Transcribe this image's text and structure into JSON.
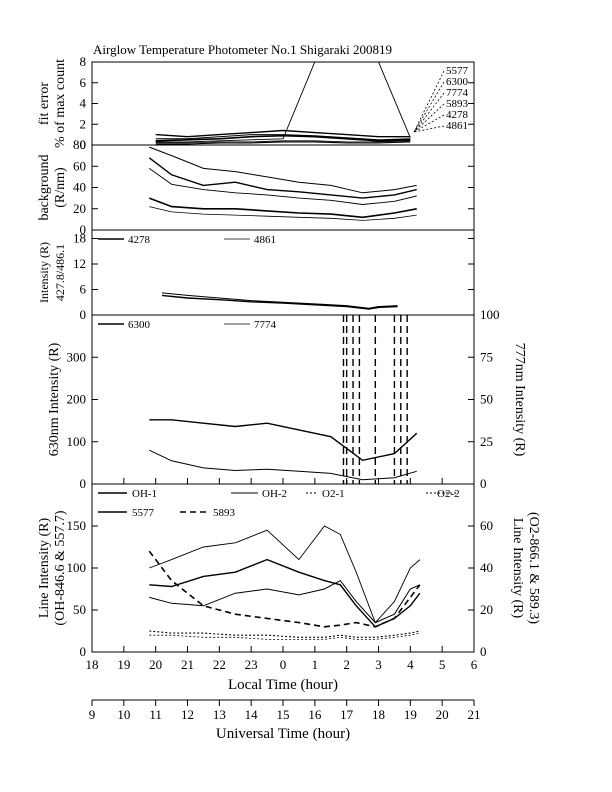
{
  "title": "Airglow Temperature Photometer No.1  Shigaraki  200819",
  "chart_data": [
    {
      "type": "line",
      "id": "fit-error",
      "ylabel_lines": [
        "fit error",
        "% of max count"
      ],
      "ylim": [
        0,
        8
      ],
      "yticks": [
        "0",
        "2",
        "4",
        "6",
        "8"
      ],
      "labels_right": [
        "5577",
        "6300",
        "7774",
        "5893",
        "4278",
        "4861"
      ],
      "x": [
        20,
        21,
        22,
        23,
        24,
        25,
        26,
        27,
        28
      ],
      "series": [
        {
          "label": "5577",
          "values": [
            0.6,
            0.6,
            0.8,
            1.0,
            1.0,
            0.9,
            0.7,
            0.5,
            0.6
          ]
        },
        {
          "label": "6300",
          "values": [
            1.0,
            0.8,
            1.0,
            1.2,
            1.4,
            1.2,
            1.0,
            0.8,
            0.8
          ]
        },
        {
          "label": "7774",
          "values": [
            0.3,
            0.3,
            0.4,
            0.5,
            0.6,
            8.0,
            8.0,
            8.0,
            0.7
          ]
        },
        {
          "label": "5893",
          "values": [
            0.4,
            0.5,
            0.6,
            0.8,
            0.9,
            0.8,
            0.6,
            0.4,
            0.5
          ]
        },
        {
          "label": "4278",
          "values": [
            0.2,
            0.2,
            0.3,
            0.3,
            0.4,
            0.4,
            0.3,
            0.3,
            0.4
          ]
        },
        {
          "label": "4861",
          "values": [
            0.1,
            0.1,
            0.2,
            0.2,
            0.3,
            0.3,
            0.2,
            0.2,
            0.3
          ]
        }
      ]
    },
    {
      "type": "line",
      "id": "background",
      "ylabel_lines": [
        "background",
        "(R/nm)"
      ],
      "ylim": [
        0,
        80
      ],
      "yticks": [
        "0",
        "20",
        "40",
        "60",
        "80"
      ],
      "x": [
        19.8,
        20.5,
        21.5,
        22.5,
        23.5,
        24.5,
        25.5,
        26.5,
        27.5,
        28.2
      ],
      "series": [
        {
          "values": [
            78,
            70,
            58,
            55,
            50,
            45,
            42,
            35,
            38,
            42
          ]
        },
        {
          "values": [
            68,
            52,
            42,
            45,
            38,
            36,
            33,
            30,
            33,
            38
          ]
        },
        {
          "values": [
            58,
            43,
            38,
            35,
            33,
            30,
            28,
            24,
            27,
            32
          ]
        },
        {
          "values": [
            30,
            22,
            20,
            20,
            18,
            16,
            15,
            12,
            16,
            20
          ]
        },
        {
          "values": [
            22,
            17,
            15,
            14,
            13,
            12,
            11,
            9,
            11,
            14
          ]
        }
      ]
    },
    {
      "type": "line",
      "id": "intensity-4278-4861",
      "ylabel_lines": [
        "Intensity (R)",
        "427.8/486.1"
      ],
      "ylim": [
        0,
        20
      ],
      "yticks": [
        "0",
        "6",
        "12",
        "18"
      ],
      "legend": [
        "4278",
        "4861"
      ],
      "x": [
        20.2,
        21,
        22,
        23,
        24,
        25,
        26,
        26.7,
        27,
        27.6
      ],
      "series": [
        {
          "name": "4278",
          "values": [
            5.2,
            4.6,
            4.0,
            3.4,
            3.0,
            2.6,
            2.2,
            1.6,
            2.0,
            2.2
          ]
        },
        {
          "name": "4861",
          "values": [
            4.6,
            4.0,
            3.6,
            3.1,
            2.8,
            2.4,
            2.0,
            1.4,
            1.8,
            2.0
          ]
        }
      ]
    },
    {
      "type": "line",
      "id": "intensity-6300-7774",
      "ylabel": "630nm Intensity (R)",
      "ylabel_right": "777nm Intensity (R)",
      "ylim": [
        0,
        400
      ],
      "yticks": [
        "0",
        "100",
        "200",
        "300"
      ],
      "ylim_right": [
        0,
        100
      ],
      "yticks_right": [
        "0",
        "25",
        "50",
        "75",
        "100"
      ],
      "legend": [
        "6300",
        "7774"
      ],
      "x": [
        19.8,
        20.5,
        21.5,
        22.5,
        23.5,
        24.5,
        25.5,
        26.5,
        27.5,
        28.2
      ],
      "series": [
        {
          "name": "6300",
          "values": [
            80,
            55,
            38,
            32,
            35,
            30,
            25,
            10,
            15,
            30
          ]
        },
        {
          "name": "7774",
          "values": [
            38,
            38,
            36,
            34,
            36,
            32,
            28,
            14,
            18,
            30
          ]
        }
      ],
      "dashed_spikes_x": [
        25.9,
        26.0,
        26.2,
        26.4,
        26.9,
        27.5,
        27.7,
        27.9
      ]
    },
    {
      "type": "line",
      "id": "line-intensity",
      "ylabel_lines": [
        "Line Intensity (R)",
        "(OH-846.6 & 557.7)"
      ],
      "ylabel_right_lines": [
        "Line Intensity (R)",
        "(O2-866.1 & 589.3)"
      ],
      "ylim": [
        0,
        200
      ],
      "yticks": [
        "0",
        "50",
        "100",
        "150"
      ],
      "ylim_right": [
        0,
        80
      ],
      "yticks_right": [
        "0",
        "20",
        "40",
        "60"
      ],
      "legend": [
        "OH-1",
        "OH-2",
        "O2-1",
        "O2-2",
        "5577",
        "5893"
      ],
      "x": [
        19.8,
        20.5,
        21.5,
        22.5,
        23.5,
        24.5,
        25.3,
        25.8,
        26.3,
        26.9,
        27.5,
        28.0,
        28.3
      ],
      "series": [
        {
          "name": "OH-1",
          "values": [
            65,
            58,
            55,
            70,
            75,
            68,
            75,
            85,
            60,
            35,
            45,
            75,
            80
          ]
        },
        {
          "name": "OH-2",
          "values": [
            80,
            78,
            90,
            95,
            110,
            95,
            85,
            80,
            55,
            30,
            40,
            55,
            70
          ]
        },
        {
          "name": "5577",
          "values": [
            100,
            110,
            125,
            130,
            145,
            110,
            150,
            140,
            95,
            35,
            60,
            100,
            110
          ]
        },
        {
          "name": "5893",
          "values": [
            120,
            85,
            55,
            45,
            40,
            35,
            30,
            32,
            35,
            30,
            40,
            65,
            80
          ]
        },
        {
          "name": "O2-1",
          "values": [
            8,
            8,
            7,
            7,
            6,
            6,
            6,
            7,
            6,
            6,
            7,
            8,
            9
          ]
        },
        {
          "name": "O2-2",
          "values": [
            10,
            9,
            9,
            8,
            8,
            7,
            7,
            8,
            7,
            7,
            8,
            9,
            10
          ]
        }
      ]
    }
  ],
  "x_local": {
    "label": "Local Time (hour)",
    "ticks": [
      "18",
      "19",
      "20",
      "21",
      "22",
      "23",
      "0",
      "1",
      "2",
      "3",
      "4",
      "5",
      "6"
    ]
  },
  "x_universal": {
    "label": "Universal Time (hour)",
    "ticks": [
      "9",
      "10",
      "11",
      "12",
      "13",
      "14",
      "15",
      "16",
      "17",
      "18",
      "19",
      "20",
      "21"
    ]
  }
}
